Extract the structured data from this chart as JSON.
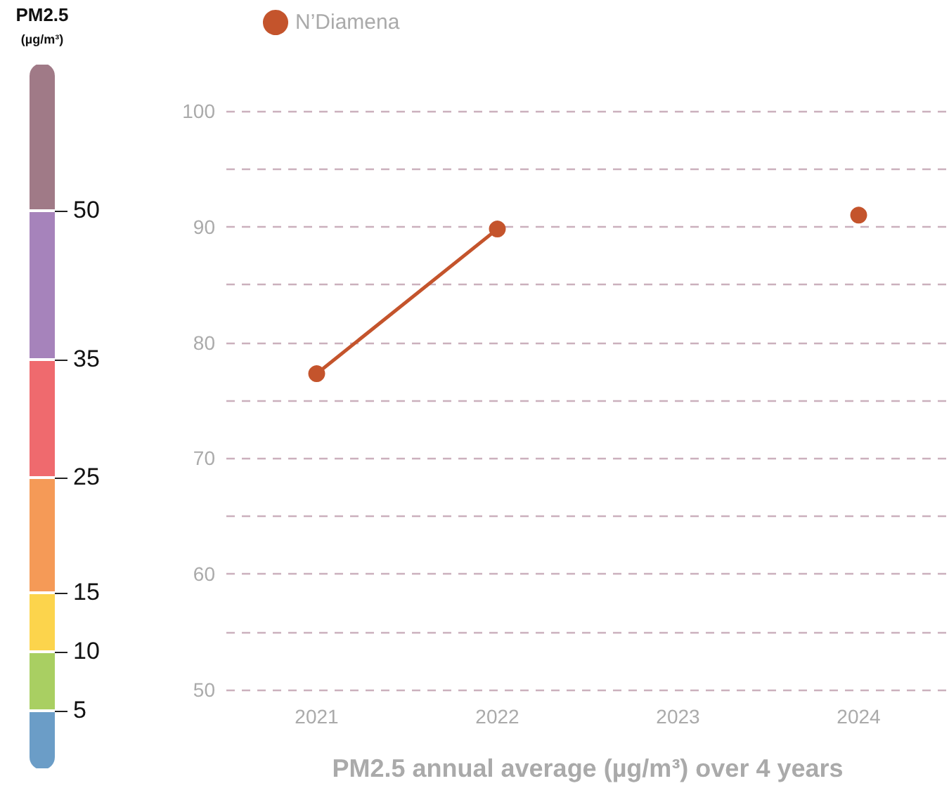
{
  "chart_data": [
    {
      "type": "other",
      "title": "PM2.5",
      "subtitle": "(µg/m³)",
      "annotations": [
        "5",
        "10",
        "15",
        "25",
        "35",
        "50"
      ],
      "colors": [
        "#6b9dc7",
        "#a9cf62",
        "#fcd44c",
        "#f59a57",
        "#ef6a6e",
        "#a683bb",
        "#a07a87"
      ]
    },
    {
      "type": "line",
      "categories": [
        "2021",
        "2022",
        "2023",
        "2024"
      ],
      "series": [
        {
          "name": "N’Diamena",
          "color": "#c4542c",
          "values": [
            77.3,
            89.8,
            null,
            91.0
          ]
        }
      ],
      "ylim": [
        50,
        100
      ],
      "yticks": [
        50,
        {
          "value": 55,
          "label": null
        },
        60,
        {
          "value": 65,
          "label": null
        },
        70,
        {
          "value": 75,
          "label": null
        },
        80,
        {
          "value": 85,
          "label": null
        },
        90,
        {
          "value": 95,
          "label": null
        },
        100
      ],
      "xlabel": "PM2.5 annual average (µg/m³) over 4 years",
      "grid": "y",
      "legend": "top left",
      "marker": "circle",
      "line_style": "solid"
    }
  ]
}
